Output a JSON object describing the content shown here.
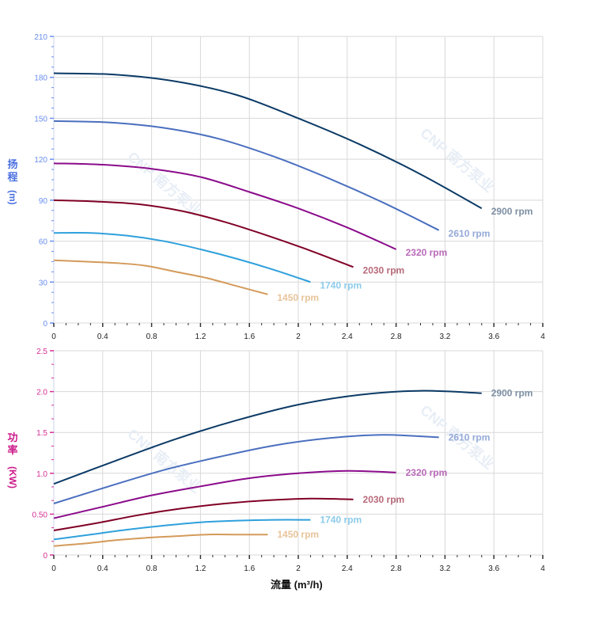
{
  "watermark": "CNP 南方泵业",
  "x_label": "流量 (m³/h)",
  "chart_data": [
    {
      "type": "line",
      "ylabel_chars": [
        "扬",
        "程",
        "(m)"
      ],
      "ylabel_color": "#4a6fe0",
      "xlim": [
        0,
        4
      ],
      "ylim": [
        0,
        210
      ],
      "x_ticks": [
        "0",
        "0.4",
        "0.8",
        "1.2",
        "1.6",
        "2",
        "2.4",
        "2.8",
        "3.2",
        "3.6",
        "4"
      ],
      "y_ticks": [
        "0",
        "30",
        "60",
        "90",
        "120",
        "150",
        "180",
        "210"
      ],
      "grid": true,
      "series": [
        {
          "name": "2900 rpm",
          "color": "#0b3a66",
          "label_color": "#7d8fa3",
          "x": [
            0,
            0.5,
            1,
            1.5,
            2,
            2.5,
            3,
            3.5
          ],
          "y": [
            183,
            182,
            177,
            167,
            150,
            131,
            109,
            84
          ]
        },
        {
          "name": "2610 rpm",
          "color": "#4a6fbf",
          "label_color": "#95aad8",
          "x": [
            0,
            0.45,
            0.9,
            1.35,
            1.8,
            2.25,
            2.7,
            3.15
          ],
          "y": [
            148,
            147,
            143,
            135,
            122,
            106,
            88,
            68
          ]
        },
        {
          "name": "2320 rpm",
          "color": "#8b0b8b",
          "label_color": "#b96ab9",
          "x": [
            0,
            0.4,
            0.8,
            1.2,
            1.6,
            2.0,
            2.4,
            2.8
          ],
          "y": [
            117,
            116,
            113,
            107,
            96,
            84,
            70,
            54
          ]
        },
        {
          "name": "2030 rpm",
          "color": "#800025",
          "label_color": "#b86a7a",
          "x": [
            0,
            0.35,
            0.7,
            1.05,
            1.4,
            1.75,
            2.1,
            2.45
          ],
          "y": [
            90,
            89,
            87,
            82,
            74,
            64,
            53,
            41
          ]
        },
        {
          "name": "1740 rpm",
          "color": "#2ea0dc",
          "label_color": "#8ccbeb",
          "x": [
            0,
            0.3,
            0.6,
            0.9,
            1.2,
            1.5,
            1.8,
            2.1
          ],
          "y": [
            66,
            66,
            64,
            60,
            54,
            47,
            39,
            30
          ]
        },
        {
          "name": "1450 rpm",
          "color": "#d49a5a",
          "label_color": "#e8c49a",
          "x": [
            0,
            0.25,
            0.5,
            0.75,
            1,
            1.25,
            1.5,
            1.75
          ],
          "y": [
            46,
            45,
            44,
            42,
            37.5,
            33,
            27,
            21
          ]
        }
      ]
    },
    {
      "type": "line",
      "ylabel_chars": [
        "功",
        "率",
        "(KW)"
      ],
      "ylabel_color": "#cc1a8a",
      "xlim": [
        0,
        4
      ],
      "ylim": [
        0,
        2.5
      ],
      "x_ticks": [
        "0",
        "0.4",
        "0.8",
        "1.2",
        "1.6",
        "2",
        "2.4",
        "2.8",
        "3.2",
        "3.6",
        "4"
      ],
      "y_ticks": [
        "0",
        "0.50",
        "1.0",
        "1.5",
        "2.0",
        "2.5"
      ],
      "grid": true,
      "series": [
        {
          "name": "2900 rpm",
          "color": "#0b3a66",
          "label_color": "#7d8fa3",
          "x": [
            0,
            0.5,
            1,
            1.5,
            2,
            2.5,
            3,
            3.5
          ],
          "y": [
            0.87,
            1.15,
            1.42,
            1.65,
            1.84,
            1.96,
            2.01,
            1.98
          ]
        },
        {
          "name": "2610 rpm",
          "color": "#4a6fbf",
          "label_color": "#95aad8",
          "x": [
            0,
            0.45,
            0.9,
            1.35,
            1.8,
            2.25,
            2.7,
            3.15
          ],
          "y": [
            0.63,
            0.84,
            1.04,
            1.2,
            1.34,
            1.43,
            1.47,
            1.44
          ]
        },
        {
          "name": "2320 rpm",
          "color": "#8b0b8b",
          "label_color": "#b96ab9",
          "x": [
            0,
            0.4,
            0.8,
            1.2,
            1.6,
            2.0,
            2.4,
            2.8
          ],
          "y": [
            0.45,
            0.59,
            0.73,
            0.84,
            0.94,
            1.0,
            1.03,
            1.01
          ]
        },
        {
          "name": "2030 rpm",
          "color": "#800025",
          "label_color": "#b86a7a",
          "x": [
            0,
            0.35,
            0.7,
            1.05,
            1.4,
            1.75,
            2.1,
            2.45
          ],
          "y": [
            0.3,
            0.39,
            0.49,
            0.57,
            0.63,
            0.67,
            0.69,
            0.68
          ]
        },
        {
          "name": "1740 rpm",
          "color": "#2ea0dc",
          "label_color": "#8ccbeb",
          "x": [
            0,
            0.3,
            0.6,
            0.9,
            1.2,
            1.5,
            1.8,
            2.1
          ],
          "y": [
            0.19,
            0.25,
            0.31,
            0.36,
            0.4,
            0.42,
            0.43,
            0.43
          ]
        },
        {
          "name": "1450 rpm",
          "color": "#d49a5a",
          "label_color": "#e8c49a",
          "x": [
            0,
            0.25,
            0.5,
            0.75,
            1,
            1.25,
            1.5,
            1.75
          ],
          "y": [
            0.11,
            0.14,
            0.18,
            0.21,
            0.23,
            0.25,
            0.25,
            0.25
          ]
        }
      ]
    }
  ]
}
